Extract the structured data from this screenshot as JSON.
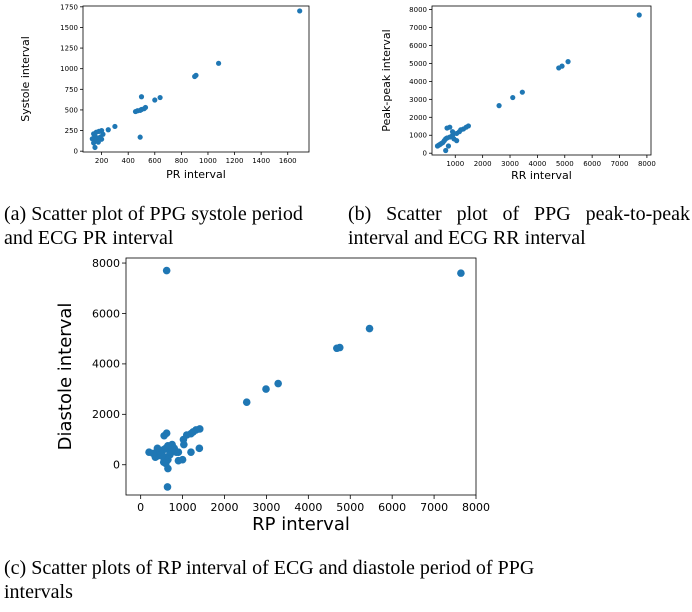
{
  "captions": {
    "a": "(a) Scatter plot of PPG systole period and ECG PR interval",
    "b": "(b) Scatter plot of PPG peak-to-peak interval and ECG RR interval",
    "c": "(c) Scatter plots of RP interval of ECG and diastole period of PPG intervals"
  },
  "chart_data": [
    {
      "type": "scatter",
      "title": "",
      "xlabel": "PR interval",
      "ylabel": "Systole interval",
      "xlim": [
        60,
        1760
      ],
      "ylim": [
        -10,
        1760
      ],
      "xticks": [
        200,
        400,
        600,
        800,
        1000,
        1200,
        1400,
        1600
      ],
      "yticks": [
        0,
        250,
        500,
        750,
        1000,
        1250,
        1500,
        1750
      ],
      "color": "#1f77b4",
      "points": [
        [
          1690,
          1700
        ],
        [
          1080,
          1065
        ],
        [
          910,
          920
        ],
        [
          900,
          905
        ],
        [
          640,
          650
        ],
        [
          600,
          620
        ],
        [
          500,
          660
        ],
        [
          530,
          530
        ],
        [
          520,
          515
        ],
        [
          500,
          505
        ],
        [
          490,
          495
        ],
        [
          470,
          490
        ],
        [
          455,
          480
        ],
        [
          490,
          170
        ],
        [
          300,
          300
        ],
        [
          250,
          260
        ],
        [
          200,
          250
        ],
        [
          210,
          205
        ],
        [
          180,
          240
        ],
        [
          160,
          230
        ],
        [
          140,
          210
        ],
        [
          150,
          180
        ],
        [
          190,
          170
        ],
        [
          170,
          160
        ],
        [
          140,
          155
        ],
        [
          130,
          150
        ],
        [
          200,
          145
        ],
        [
          160,
          135
        ],
        [
          150,
          120
        ],
        [
          175,
          110
        ],
        [
          140,
          100
        ],
        [
          150,
          45
        ]
      ]
    },
    {
      "type": "scatter",
      "title": "",
      "xlabel": "RR interval",
      "ylabel": "Peak-peak interval",
      "xlim": [
        150,
        8150
      ],
      "ylim": [
        -100,
        8200
      ],
      "xticks": [
        1000,
        2000,
        3000,
        4000,
        5000,
        6000,
        7000,
        8000
      ],
      "yticks": [
        0,
        1000,
        2000,
        3000,
        4000,
        5000,
        6000,
        7000,
        8000
      ],
      "color": "#1f77b4",
      "points": [
        [
          7720,
          7700
        ],
        [
          5120,
          5100
        ],
        [
          4900,
          4850
        ],
        [
          4780,
          4750
        ],
        [
          3450,
          3400
        ],
        [
          3100,
          3100
        ],
        [
          2600,
          2650
        ],
        [
          1480,
          1520
        ],
        [
          1400,
          1450
        ],
        [
          1300,
          1350
        ],
        [
          1200,
          1300
        ],
        [
          1150,
          1200
        ],
        [
          1050,
          1100
        ],
        [
          900,
          1000
        ],
        [
          800,
          900
        ],
        [
          700,
          850
        ],
        [
          650,
          800
        ],
        [
          600,
          700
        ],
        [
          550,
          600
        ],
        [
          500,
          550
        ],
        [
          450,
          500
        ],
        [
          400,
          450
        ],
        [
          750,
          400
        ],
        [
          800,
          1450
        ],
        [
          900,
          1200
        ],
        [
          700,
          1400
        ],
        [
          950,
          800
        ],
        [
          1050,
          700
        ],
        [
          650,
          150
        ],
        [
          350,
          400
        ]
      ]
    },
    {
      "type": "scatter",
      "title": "",
      "xlabel": "RP interval",
      "ylabel": "Diastole interval",
      "xlim": [
        -350,
        8000
      ],
      "ylim": [
        -1200,
        8200
      ],
      "xticks": [
        0,
        1000,
        2000,
        3000,
        4000,
        5000,
        6000,
        7000,
        8000
      ],
      "yticks": [
        0,
        2000,
        4000,
        6000,
        8000
      ],
      "color": "#1f77b4",
      "points": [
        [
          620,
          7700
        ],
        [
          7640,
          7600
        ],
        [
          5460,
          5400
        ],
        [
          4750,
          4650
        ],
        [
          4680,
          4620
        ],
        [
          3280,
          3220
        ],
        [
          2990,
          3000
        ],
        [
          2530,
          2480
        ],
        [
          1410,
          1420
        ],
        [
          1320,
          1380
        ],
        [
          1250,
          1300
        ],
        [
          1200,
          1230
        ],
        [
          1100,
          1180
        ],
        [
          1020,
          1000
        ],
        [
          1030,
          800
        ],
        [
          1200,
          500
        ],
        [
          1400,
          650
        ],
        [
          900,
          500
        ],
        [
          1000,
          200
        ],
        [
          900,
          160
        ],
        [
          700,
          700
        ],
        [
          650,
          750
        ],
        [
          600,
          650
        ],
        [
          550,
          600
        ],
        [
          500,
          500
        ],
        [
          450,
          400
        ],
        [
          400,
          350
        ],
        [
          350,
          300
        ],
        [
          600,
          300
        ],
        [
          650,
          200
        ],
        [
          700,
          400
        ],
        [
          750,
          800
        ],
        [
          800,
          550
        ],
        [
          620,
          1250
        ],
        [
          560,
          1150
        ],
        [
          200,
          500
        ],
        [
          550,
          100
        ],
        [
          600,
          50
        ],
        [
          650,
          -150
        ],
        [
          640,
          -880
        ],
        [
          500,
          350
        ],
        [
          450,
          550
        ],
        [
          700,
          500
        ],
        [
          800,
          650
        ],
        [
          850,
          500
        ],
        [
          400,
          650
        ],
        [
          300,
          450
        ],
        [
          750,
          600
        ]
      ]
    }
  ]
}
